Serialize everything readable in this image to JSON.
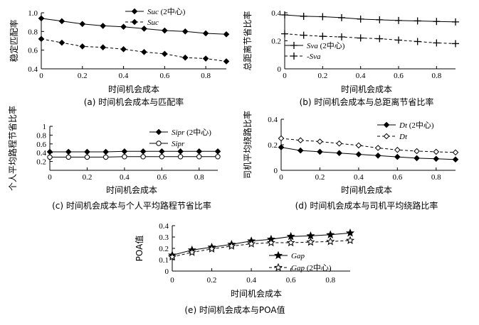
{
  "chart_data": [
    {
      "id": "a",
      "type": "line",
      "caption": "(a) 时间机会成本与匹配率",
      "xlabel": "时间机会成本",
      "ylabel": "稳定匹配率",
      "xlim": [
        0,
        0.9
      ],
      "ylim": [
        0.4,
        1.0
      ],
      "xticks": [
        0,
        0.2,
        0.4,
        0.6,
        0.8
      ],
      "yticks": [
        0.4,
        0.6,
        0.8,
        1.0
      ],
      "x": [
        0,
        0.1,
        0.2,
        0.3,
        0.4,
        0.5,
        0.6,
        0.7,
        0.8,
        0.9
      ],
      "legend_position": "top-right",
      "series": [
        {
          "name": "Suc",
          "suffix": " (2中心)",
          "marker": "diamond-filled",
          "dash": false,
          "values": [
            0.94,
            0.91,
            0.88,
            0.86,
            0.85,
            0.83,
            0.81,
            0.8,
            0.78,
            0.77
          ]
        },
        {
          "name": "Suc",
          "suffix": "",
          "marker": "diamond-filled",
          "dash": true,
          "values": [
            0.72,
            0.68,
            0.64,
            0.63,
            0.61,
            0.58,
            0.56,
            0.52,
            0.51,
            0.48
          ]
        }
      ]
    },
    {
      "id": "b",
      "type": "line",
      "caption": "(b) 时间机会成本与总距离节省比率",
      "xlabel": "时间机会成本",
      "ylabel": "总距离节省比率",
      "xlim": [
        0,
        0.9
      ],
      "ylim": [
        0,
        0.4
      ],
      "xticks": [
        0,
        0.2,
        0.4,
        0.6,
        0.8
      ],
      "yticks": [
        0,
        0.2,
        0.4
      ],
      "x": [
        0,
        0.1,
        0.2,
        0.3,
        0.4,
        0.5,
        0.6,
        0.7,
        0.8,
        0.9
      ],
      "legend_position": "bottom-left",
      "series": [
        {
          "name": "Sva",
          "suffix": " (2中心)",
          "marker": "plus",
          "dash": false,
          "values": [
            0.385,
            0.375,
            0.372,
            0.365,
            0.355,
            0.35,
            0.345,
            0.342,
            0.338,
            0.335
          ]
        },
        {
          "name": "Sva",
          "suffix": "",
          "prefix": "-",
          "marker": "plus",
          "dash": true,
          "values": [
            0.25,
            0.24,
            0.232,
            0.228,
            0.22,
            0.215,
            0.205,
            0.195,
            0.185,
            0.18
          ]
        }
      ]
    },
    {
      "id": "c",
      "type": "line",
      "caption": "(c) 时间机会成本与个人平均路程节省比率",
      "xlabel": "时间机会成本",
      "ylabel": "个人平均路程节省比率",
      "xlim": [
        0,
        0.9
      ],
      "ylim": [
        0,
        1.0
      ],
      "xticks": [
        0,
        0.2,
        0.4,
        0.6,
        0.8
      ],
      "yticks": [
        0.2,
        0.4,
        0.6,
        0.8,
        1.0
      ],
      "yticklabels": [
        "0.2",
        "0.4",
        "0.6",
        "0.8",
        "1"
      ],
      "x": [
        0,
        0.1,
        0.2,
        0.3,
        0.4,
        0.5,
        0.6,
        0.7,
        0.8,
        0.9
      ],
      "legend_position": "right",
      "series": [
        {
          "name": "Sipr",
          "suffix": " (2中心)",
          "marker": "diamond-filled",
          "dash": false,
          "values": [
            0.42,
            0.42,
            0.42,
            0.42,
            0.43,
            0.43,
            0.43,
            0.43,
            0.43,
            0.43
          ]
        },
        {
          "name": "Sipr",
          "suffix": "",
          "marker": "circle-open",
          "dash": false,
          "values": [
            0.3,
            0.3,
            0.3,
            0.3,
            0.31,
            0.31,
            0.31,
            0.31,
            0.31,
            0.31
          ]
        }
      ]
    },
    {
      "id": "d",
      "type": "line",
      "caption": "(d) 时间机会成本与司机平均绕路比率",
      "xlabel": "时间机会成本",
      "ylabel": "司机平均绕路比率",
      "xlim": [
        0,
        0.9
      ],
      "ylim": [
        0,
        0.4
      ],
      "xticks": [
        0,
        0.2,
        0.4,
        0.6,
        0.8
      ],
      "yticks": [
        0,
        0.2,
        0.4
      ],
      "x": [
        0,
        0.1,
        0.2,
        0.3,
        0.4,
        0.5,
        0.6,
        0.7,
        0.8,
        0.9
      ],
      "legend_position": "top-right",
      "series": [
        {
          "name": "Dt",
          "suffix": " (2中心)",
          "marker": "diamond-filled",
          "dash": false,
          "values": [
            0.18,
            0.155,
            0.145,
            0.135,
            0.125,
            0.115,
            0.105,
            0.095,
            0.09,
            0.085
          ]
        },
        {
          "name": "Dt",
          "suffix": "",
          "marker": "diamond-open",
          "dash": true,
          "values": [
            0.25,
            0.235,
            0.225,
            0.21,
            0.195,
            0.175,
            0.16,
            0.15,
            0.145,
            0.14
          ]
        }
      ]
    },
    {
      "id": "e",
      "type": "line",
      "caption": "(e) 时间机会成本与POA值",
      "xlabel": "时间机会成本",
      "ylabel": "POA值",
      "xlim": [
        0,
        0.9
      ],
      "ylim": [
        0,
        0.4
      ],
      "xticks": [
        0,
        0.2,
        0.4,
        0.6,
        0.8
      ],
      "yticks": [
        0,
        0.1,
        0.2,
        0.3,
        0.4
      ],
      "x": [
        0,
        0.1,
        0.2,
        0.3,
        0.4,
        0.5,
        0.6,
        0.7,
        0.8,
        0.9
      ],
      "legend_position": "bottom-right",
      "series": [
        {
          "name": "Gap",
          "suffix": "",
          "marker": "star-filled",
          "dash": false,
          "values": [
            0.14,
            0.185,
            0.21,
            0.235,
            0.265,
            0.28,
            0.305,
            0.31,
            0.32,
            0.335
          ]
        },
        {
          "name": "Gap",
          "suffix": " (2中心)",
          "marker": "star-open",
          "dash": true,
          "values": [
            0.125,
            0.165,
            0.195,
            0.22,
            0.24,
            0.25,
            0.25,
            0.255,
            0.26,
            0.27
          ]
        }
      ]
    }
  ]
}
